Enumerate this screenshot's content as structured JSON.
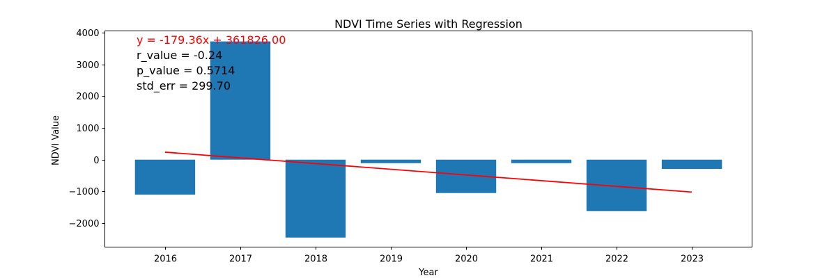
{
  "chart_data": {
    "type": "bar",
    "title": "NDVI Time Series with Regression",
    "xlabel": "Year",
    "ylabel": "NDVI Value",
    "categories": [
      "2016",
      "2017",
      "2018",
      "2019",
      "2020",
      "2021",
      "2022",
      "2023"
    ],
    "x": [
      2016,
      2017,
      2018,
      2019,
      2020,
      2021,
      2022,
      2023
    ],
    "values": [
      -1100,
      3720,
      -2450,
      -110,
      -1050,
      -110,
      -1620,
      -290
    ],
    "ylim": [
      -2750,
      4050
    ],
    "yticks": [
      4000,
      3000,
      2000,
      1000,
      0,
      -1000,
      -2000
    ],
    "ytick_labels": [
      "4000",
      "3000",
      "2000",
      "1000",
      "0",
      "−1000",
      "−2000"
    ],
    "bar_color": "#1f77b4",
    "regression": {
      "slope": -179.36,
      "intercept": 361826.0,
      "color": "#ff0000",
      "x_range": [
        2016,
        2023
      ]
    },
    "annotations": [
      {
        "text": "y = -179.36x + 361826.00",
        "color": "#ff0000"
      },
      {
        "text": "r_value = -0.24",
        "color": "#000000"
      },
      {
        "text": "p_value = 0.5714",
        "color": "#000000"
      },
      {
        "text": "std_err = 299.70",
        "color": "#000000"
      }
    ],
    "grid": false,
    "legend": "none"
  }
}
